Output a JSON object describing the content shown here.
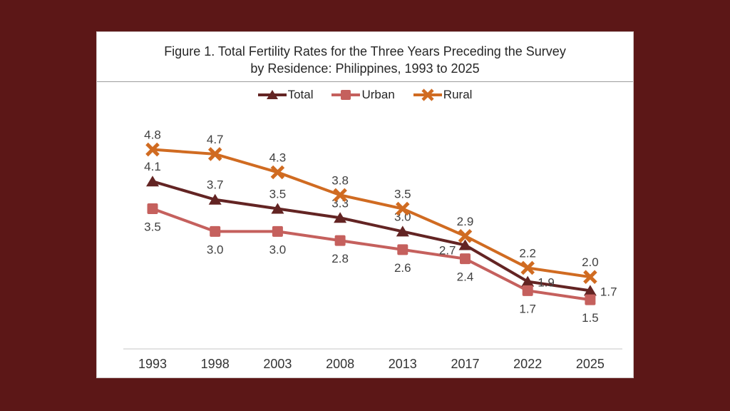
{
  "background_color": "#5C1717",
  "panel_background": "#FFFFFF",
  "title": {
    "line1": "Figure 1. Total Fertility Rates for the Three Years Preceding the Survey",
    "line2": "by Residence: Philippines, 1993 to 2025"
  },
  "chart_data": {
    "type": "line",
    "title": "Figure 1. Total Fertility Rates for the Three Years Preceding the Survey by Residence: Philippines, 1993 to 2025",
    "categories": [
      "1993",
      "1998",
      "2003",
      "2008",
      "2013",
      "2017",
      "2022",
      "2025"
    ],
    "series": [
      {
        "name": "Total",
        "color": "#632423",
        "marker": "triangle",
        "values": [
          4.1,
          3.7,
          3.5,
          3.3,
          3.0,
          2.7,
          1.9,
          1.7
        ],
        "label_positions": [
          "above",
          "above",
          "above",
          "above",
          "above",
          "left",
          "right",
          "right"
        ]
      },
      {
        "name": "Urban",
        "color": "#C5605D",
        "marker": "square",
        "values": [
          3.5,
          3.0,
          3.0,
          2.8,
          2.6,
          2.4,
          1.7,
          1.5
        ],
        "label_positions": [
          "below",
          "below",
          "below",
          "below",
          "below",
          "below",
          "below",
          "below"
        ]
      },
      {
        "name": "Rural",
        "color": "#D06B21",
        "marker": "x",
        "values": [
          4.8,
          4.7,
          4.3,
          3.8,
          3.5,
          2.9,
          2.2,
          2.0
        ],
        "label_positions": [
          "above",
          "above",
          "above",
          "above",
          "above",
          "above",
          "above",
          "above"
        ]
      }
    ],
    "xlabel": "",
    "ylabel": "",
    "ylim": [
      0.42,
      5.5
    ],
    "grid": false,
    "y_axis_visible": false,
    "data_labels": true,
    "legend_position": "top",
    "data_label_color": "#404040",
    "tick_label_color": "#333333",
    "axis_line_color": "#D9D9D9"
  }
}
